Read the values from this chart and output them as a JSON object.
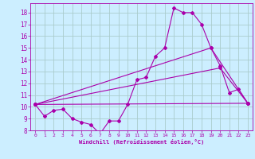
{
  "xlabel": "Windchill (Refroidissement éolien,°C)",
  "bg_color": "#cceeff",
  "grid_color": "#aacccc",
  "line_color": "#aa00aa",
  "ylim": [
    8,
    18.8
  ],
  "xlim": [
    -0.5,
    23.5
  ],
  "yticks": [
    8,
    9,
    10,
    11,
    12,
    13,
    14,
    15,
    16,
    17,
    18
  ],
  "xticks": [
    0,
    1,
    2,
    3,
    4,
    5,
    6,
    7,
    8,
    9,
    10,
    11,
    12,
    13,
    14,
    15,
    16,
    17,
    18,
    19,
    20,
    21,
    22,
    23
  ],
  "lines": [
    {
      "x": [
        0,
        1,
        2,
        3,
        4,
        5,
        6,
        7,
        8,
        9,
        10,
        11,
        12,
        13,
        14,
        15,
        16,
        17,
        18,
        19,
        20,
        21,
        22,
        23
      ],
      "y": [
        10.2,
        9.2,
        9.7,
        9.8,
        9.0,
        8.7,
        8.5,
        7.7,
        8.8,
        8.8,
        10.2,
        12.3,
        12.5,
        14.3,
        15.0,
        18.4,
        18.0,
        18.0,
        17.0,
        15.0,
        13.5,
        11.2,
        11.5,
        10.3
      ]
    },
    {
      "x": [
        0,
        23
      ],
      "y": [
        10.2,
        10.3
      ]
    },
    {
      "comment": "diagonal line from (0,10.2) to (20,13.3) to (23,10.3)",
      "x": [
        0,
        20,
        23
      ],
      "y": [
        10.2,
        13.3,
        10.3
      ]
    },
    {
      "comment": "diagonal line from (0,10.2) to (19,15.0) to (23,10.3)",
      "x": [
        0,
        19,
        23
      ],
      "y": [
        10.2,
        15.0,
        10.3
      ]
    }
  ]
}
